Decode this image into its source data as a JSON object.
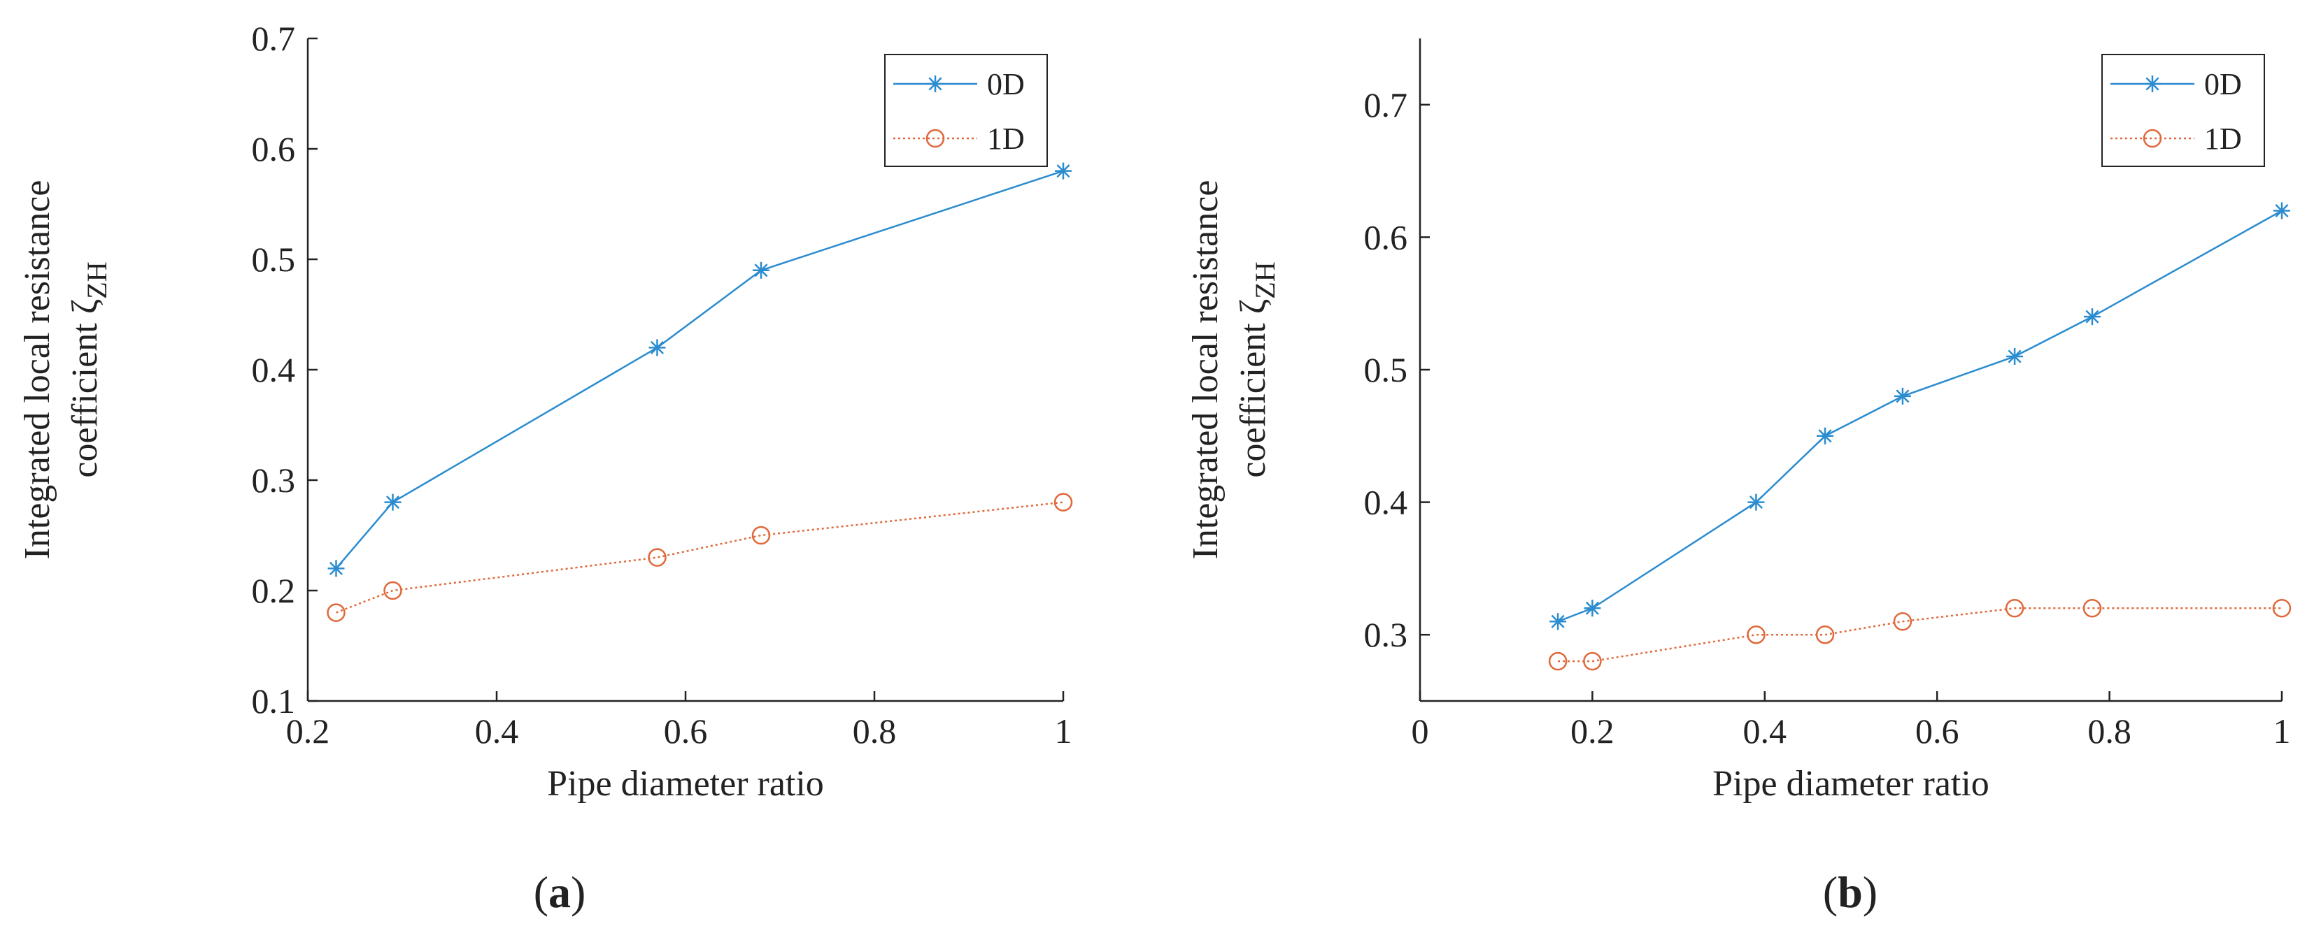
{
  "chart_data": [
    {
      "type": "line",
      "panel_label": "(a)",
      "panel_letter": "a",
      "xlabel": "Pipe diameter ratio",
      "ylabel_line1": "Integrated local resistance",
      "ylabel_line2": "coefficient ζ",
      "ylabel_subscript": "ZH",
      "xlim": [
        0.2,
        1.0
      ],
      "ylim": [
        0.1,
        0.7
      ],
      "xticks": [
        0.2,
        0.4,
        0.6,
        0.8,
        1.0
      ],
      "xtick_labels": [
        "0.2",
        "0.4",
        "0.6",
        "0.8",
        "1"
      ],
      "yticks": [
        0.1,
        0.2,
        0.3,
        0.4,
        0.5,
        0.6,
        0.7
      ],
      "ytick_labels": [
        "0.1",
        "0.2",
        "0.3",
        "0.4",
        "0.5",
        "0.6",
        "0.7"
      ],
      "legend_position": "top-right",
      "series": [
        {
          "name": "0D",
          "color": "#2b8ccf",
          "marker": "asterisk",
          "line": "solid",
          "x": [
            0.23,
            0.29,
            0.57,
            0.68,
            1.0
          ],
          "y": [
            0.22,
            0.28,
            0.42,
            0.49,
            0.58
          ]
        },
        {
          "name": "1D",
          "color": "#e0683a",
          "marker": "circle",
          "line": "dotted",
          "x": [
            0.23,
            0.29,
            0.57,
            0.68,
            1.0
          ],
          "y": [
            0.18,
            0.2,
            0.23,
            0.25,
            0.28
          ]
        }
      ]
    },
    {
      "type": "line",
      "panel_label": "(b)",
      "panel_letter": "b",
      "xlabel": "Pipe diameter ratio",
      "ylabel_line1": "Integrated local resistance",
      "ylabel_line2": "coefficient ζ",
      "ylabel_subscript": "ZH",
      "xlim": [
        0.0,
        1.0
      ],
      "ylim": [
        0.25,
        0.75
      ],
      "xticks": [
        0.0,
        0.2,
        0.4,
        0.6,
        0.8,
        1.0
      ],
      "xtick_labels": [
        "0",
        "0.2",
        "0.4",
        "0.6",
        "0.8",
        "1"
      ],
      "yticks": [
        0.3,
        0.4,
        0.5,
        0.6,
        0.7
      ],
      "ytick_labels": [
        "0.3",
        "0.4",
        "0.5",
        "0.6",
        "0.7"
      ],
      "legend_position": "top-right",
      "series": [
        {
          "name": "0D",
          "color": "#2b8ccf",
          "marker": "asterisk",
          "line": "solid",
          "x": [
            0.16,
            0.2,
            0.39,
            0.47,
            0.56,
            0.69,
            0.78,
            1.0
          ],
          "y": [
            0.31,
            0.32,
            0.4,
            0.45,
            0.48,
            0.51,
            0.54,
            0.62
          ]
        },
        {
          "name": "1D",
          "color": "#e0683a",
          "marker": "circle",
          "line": "dotted",
          "x": [
            0.16,
            0.2,
            0.39,
            0.47,
            0.56,
            0.69,
            0.78,
            1.0
          ],
          "y": [
            0.28,
            0.28,
            0.3,
            0.3,
            0.31,
            0.32,
            0.32,
            0.32
          ]
        }
      ]
    }
  ]
}
